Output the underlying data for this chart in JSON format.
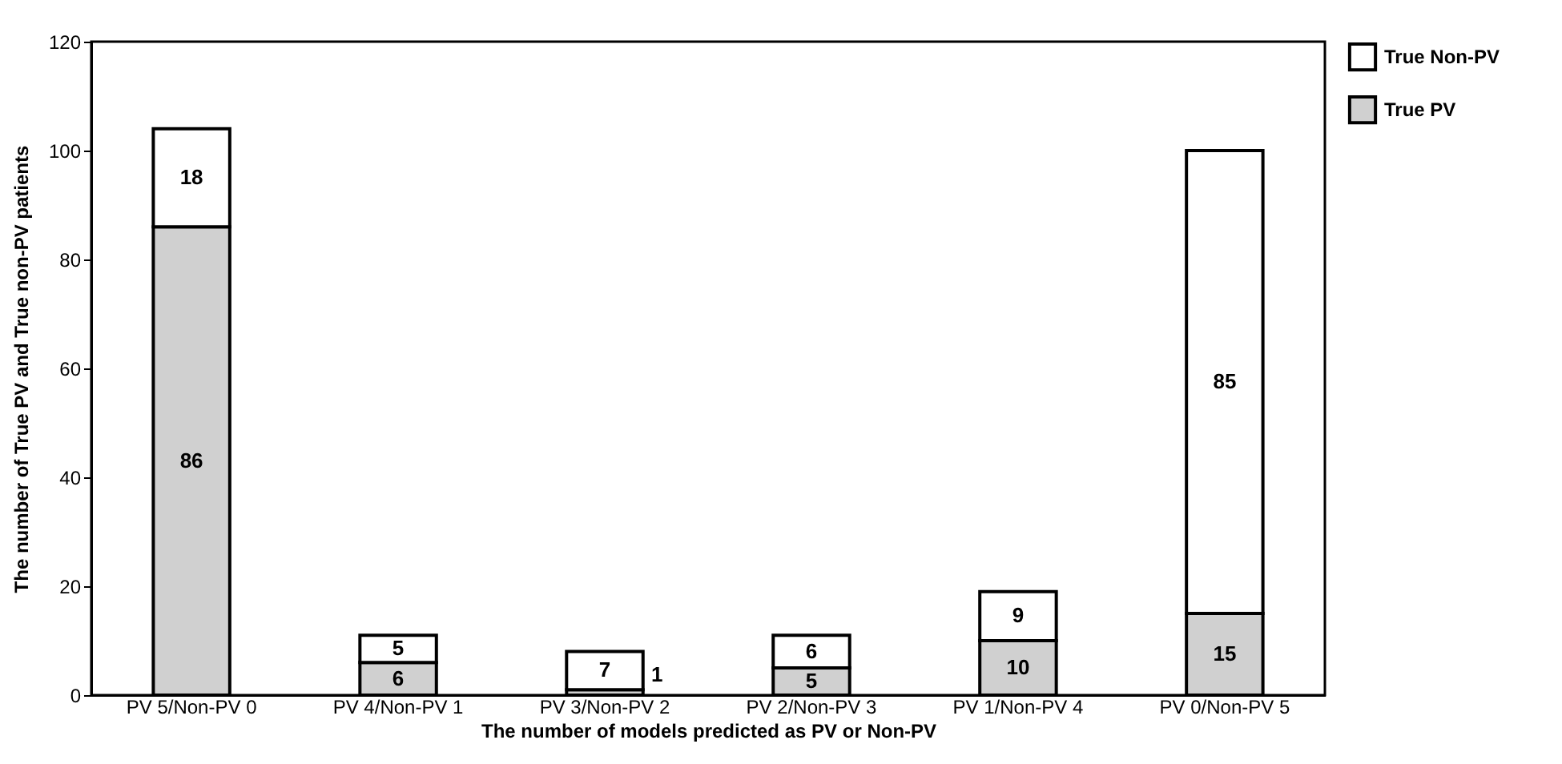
{
  "chart_data": {
    "type": "bar",
    "stacked": true,
    "xlabel": "The number of models  predicted as PV or Non-PV",
    "ylabel": "The number of True PV and True non-PV patients",
    "categories": [
      "PV 5/Non-PV 0",
      "PV 4/Non-PV 1",
      "PV 3/Non-PV 2",
      "PV 2/Non-PV 3",
      "PV 1/Non-PV 4",
      "PV 0/Non-PV 5"
    ],
    "series": [
      {
        "name": "True PV",
        "color": "#d0d0d0",
        "values": [
          86,
          6,
          1,
          5,
          10,
          15
        ]
      },
      {
        "name": "True Non-PV",
        "color": "#ffffff",
        "values": [
          18,
          5,
          7,
          6,
          9,
          85
        ]
      }
    ],
    "ylim": [
      0,
      120
    ],
    "yticks": [
      0,
      20,
      40,
      60,
      80,
      100,
      120
    ],
    "grid": false,
    "legend": "top right",
    "data_labels": true
  }
}
